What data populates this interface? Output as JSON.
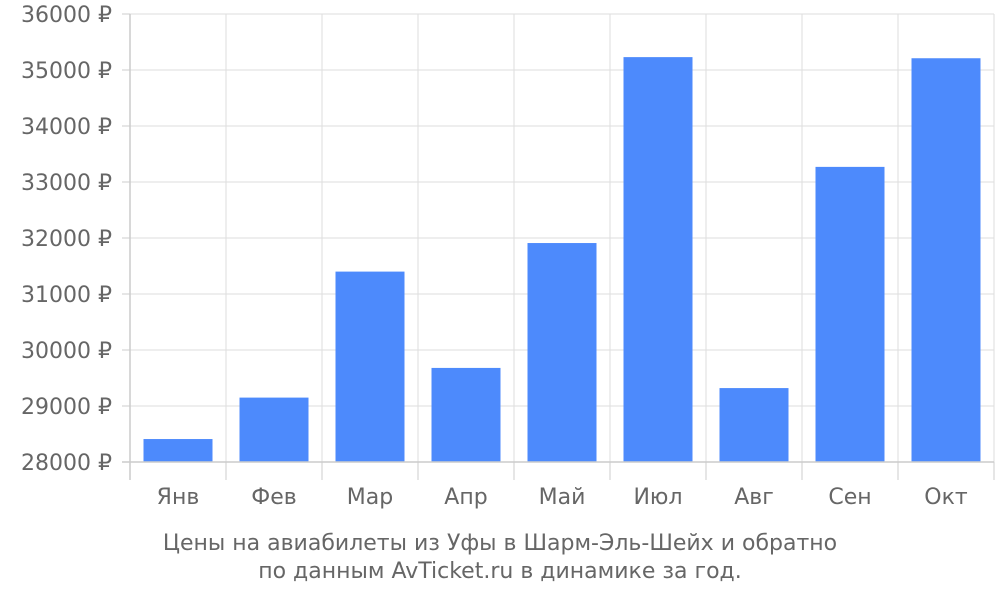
{
  "chart_data": {
    "type": "bar",
    "categories": [
      "Янв",
      "Фев",
      "Мар",
      "Апр",
      "Май",
      "Июл",
      "Авг",
      "Сен",
      "Окт"
    ],
    "values": [
      28410,
      29150,
      31400,
      29680,
      31910,
      35230,
      29320,
      33270,
      35210
    ],
    "ylim": [
      28000,
      36000
    ],
    "yticks": [
      28000,
      29000,
      30000,
      31000,
      32000,
      33000,
      34000,
      35000,
      36000
    ],
    "ytick_labels": [
      "28000 ₽",
      "29000 ₽",
      "30000 ₽",
      "31000 ₽",
      "32000 ₽",
      "33000 ₽",
      "34000 ₽",
      "35000 ₽",
      "36000 ₽"
    ],
    "grid": true,
    "bar_color": "#4d8afc"
  },
  "caption": {
    "line1": "Цены на авиабилеты из Уфы в Шарм-Эль-Шейх и обратно",
    "line2": "по данным AvTicket.ru в динамике за год."
  }
}
